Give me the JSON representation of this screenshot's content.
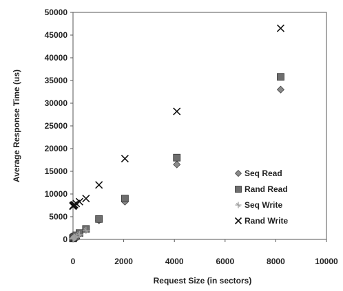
{
  "chart_data": {
    "type": "scatter",
    "title": "",
    "xlabel": "Request Size (in sectors)",
    "ylabel": "Average Response Time (us)",
    "xlim": [
      0,
      10000
    ],
    "ylim": [
      0,
      50000
    ],
    "xticks": [
      "0",
      "2000",
      "4000",
      "6000",
      "8000",
      "10000"
    ],
    "yticks": [
      "0",
      "5000",
      "10000",
      "15000",
      "20000",
      "25000",
      "30000",
      "35000",
      "40000",
      "45000",
      "50000"
    ],
    "grid": false,
    "legend_position": "right",
    "series": [
      {
        "name": "Seq Read",
        "marker": "diamond",
        "color": "#8a8a8a",
        "x": [
          1,
          2,
          4,
          8,
          16,
          32,
          64,
          128,
          256,
          512,
          1024,
          2048,
          4096,
          8192
        ],
        "y": [
          150,
          170,
          200,
          250,
          300,
          400,
          500,
          800,
          1300,
          2200,
          4200,
          8300,
          16500,
          33000
        ]
      },
      {
        "name": "Rand Read",
        "marker": "square",
        "color": "#6e6e6e",
        "x": [
          1,
          2,
          4,
          8,
          16,
          32,
          64,
          128,
          256,
          512,
          1024,
          2048,
          4096,
          8192
        ],
        "y": [
          200,
          220,
          260,
          320,
          380,
          480,
          600,
          900,
          1400,
          2300,
          4500,
          9000,
          18000,
          35800
        ]
      },
      {
        "name": "Seq Write",
        "marker": "star",
        "color": "#a0a0a0",
        "x": [
          1,
          2,
          4,
          8,
          16,
          32,
          64,
          128,
          256,
          512
        ],
        "y": [
          100,
          120,
          150,
          200,
          260,
          350,
          450,
          700,
          1100,
          2000
        ]
      },
      {
        "name": "Rand Write",
        "marker": "x",
        "color": "#111111",
        "x": [
          1,
          2,
          4,
          8,
          16,
          32,
          64,
          128,
          256,
          512,
          1024,
          2048,
          4096,
          8192
        ],
        "y": [
          7300,
          7350,
          7400,
          7450,
          7500,
          7550,
          7650,
          7900,
          8300,
          9000,
          12000,
          17800,
          28200,
          46500
        ]
      }
    ]
  }
}
